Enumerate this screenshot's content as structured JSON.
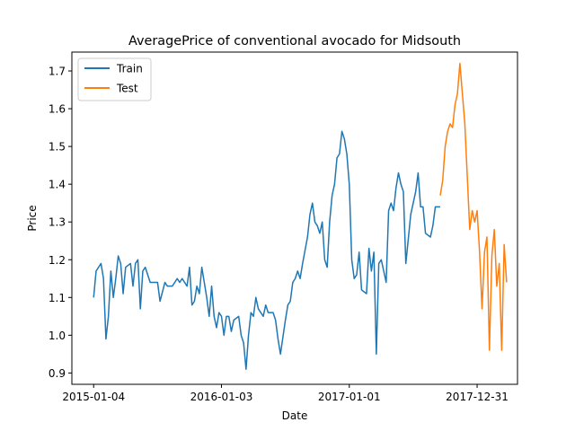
{
  "chart_data": {
    "type": "line",
    "title": "AveragePrice of conventional avocado for Midsouth",
    "xlabel": "Date",
    "ylabel": "Price",
    "x_tick_labels": [
      "2015-01-04",
      "2016-01-03",
      "2017-01-01",
      "2017-12-31"
    ],
    "x_tick_dates": [
      "2015-01-04",
      "2016-01-03",
      "2017-01-01",
      "2017-12-31"
    ],
    "y_ticks": [
      0.9,
      1.0,
      1.1,
      1.2,
      1.3,
      1.4,
      1.5,
      1.6,
      1.7
    ],
    "y_tick_labels": [
      "0.9",
      "1.0",
      "1.1",
      "1.2",
      "1.3",
      "1.4",
      "1.5",
      "1.6",
      "1.7"
    ],
    "xlim": [
      "2014-11-03",
      "2018-04-25"
    ],
    "ylim": [
      0.87,
      1.75
    ],
    "grid": false,
    "legend": {
      "position": "top-left",
      "entries": [
        "Train",
        "Test"
      ]
    },
    "series": [
      {
        "name": "Train",
        "color": "#1f77b4",
        "x": [
          "2015-01-04",
          "2015-01-11",
          "2015-01-25",
          "2015-02-01",
          "2015-02-08",
          "2015-02-15",
          "2015-02-22",
          "2015-03-01",
          "2015-03-08",
          "2015-03-15",
          "2015-03-22",
          "2015-03-29",
          "2015-04-05",
          "2015-04-19",
          "2015-04-26",
          "2015-05-03",
          "2015-05-10",
          "2015-05-17",
          "2015-05-24",
          "2015-05-31",
          "2015-06-14",
          "2015-06-21",
          "2015-07-05",
          "2015-07-12",
          "2015-07-26",
          "2015-08-02",
          "2015-08-16",
          "2015-08-23",
          "2015-08-30",
          "2015-09-06",
          "2015-09-13",
          "2015-09-20",
          "2015-09-27",
          "2015-10-04",
          "2015-10-11",
          "2015-10-18",
          "2015-10-25",
          "2015-11-01",
          "2015-11-08",
          "2015-11-22",
          "2015-11-29",
          "2015-12-06",
          "2015-12-13",
          "2015-12-20",
          "2015-12-27",
          "2016-01-03",
          "2016-01-10",
          "2016-01-17",
          "2016-01-24",
          "2016-01-31",
          "2016-02-07",
          "2016-02-21",
          "2016-02-28",
          "2016-03-06",
          "2016-03-13",
          "2016-03-20",
          "2016-03-27",
          "2016-04-03",
          "2016-04-10",
          "2016-04-17",
          "2016-05-01",
          "2016-05-08",
          "2016-05-15",
          "2016-05-29",
          "2016-06-05",
          "2016-06-12",
          "2016-06-19",
          "2016-07-03",
          "2016-07-10",
          "2016-07-17",
          "2016-07-24",
          "2016-07-31",
          "2016-08-07",
          "2016-08-14",
          "2016-08-21",
          "2016-09-04",
          "2016-09-11",
          "2016-09-18",
          "2016-09-25",
          "2016-10-02",
          "2016-10-09",
          "2016-10-16",
          "2016-10-23",
          "2016-10-30",
          "2016-11-06",
          "2016-11-13",
          "2016-11-20",
          "2016-11-27",
          "2016-12-04",
          "2016-12-11",
          "2016-12-18",
          "2016-12-25",
          "2017-01-01",
          "2017-01-08",
          "2017-01-15",
          "2017-01-22",
          "2017-01-29",
          "2017-02-05",
          "2017-02-19",
          "2017-02-26",
          "2017-03-05",
          "2017-03-12",
          "2017-03-19",
          "2017-03-26",
          "2017-04-02",
          "2017-04-16",
          "2017-04-23",
          "2017-04-30",
          "2017-05-07",
          "2017-05-14",
          "2017-05-21",
          "2017-05-28",
          "2017-06-04",
          "2017-06-11",
          "2017-06-25",
          "2017-07-02",
          "2017-07-09",
          "2017-07-16",
          "2017-07-23",
          "2017-07-30",
          "2017-08-06",
          "2017-08-20",
          "2017-08-27",
          "2017-09-03",
          "2017-09-10",
          "2017-09-17"
        ],
        "y": [
          1.1,
          1.17,
          1.19,
          1.15,
          0.99,
          1.05,
          1.17,
          1.1,
          1.15,
          1.21,
          1.19,
          1.11,
          1.18,
          1.19,
          1.13,
          1.19,
          1.2,
          1.07,
          1.17,
          1.18,
          1.14,
          1.14,
          1.14,
          1.09,
          1.14,
          1.13,
          1.13,
          1.14,
          1.15,
          1.14,
          1.15,
          1.14,
          1.13,
          1.18,
          1.08,
          1.09,
          1.13,
          1.11,
          1.18,
          1.1,
          1.05,
          1.13,
          1.05,
          1.02,
          1.06,
          1.05,
          1.0,
          1.05,
          1.05,
          1.01,
          1.04,
          1.05,
          1.0,
          0.98,
          0.91,
          1.0,
          1.06,
          1.05,
          1.1,
          1.07,
          1.05,
          1.08,
          1.06,
          1.06,
          1.04,
          0.99,
          0.95,
          1.04,
          1.08,
          1.09,
          1.14,
          1.15,
          1.17,
          1.15,
          1.19,
          1.26,
          1.32,
          1.35,
          1.3,
          1.29,
          1.27,
          1.3,
          1.2,
          1.18,
          1.3,
          1.37,
          1.4,
          1.47,
          1.48,
          1.54,
          1.52,
          1.48,
          1.4,
          1.2,
          1.15,
          1.16,
          1.22,
          1.12,
          1.11,
          1.23,
          1.17,
          1.22,
          0.95,
          1.19,
          1.2,
          1.14,
          1.33,
          1.35,
          1.33,
          1.39,
          1.43,
          1.4,
          1.38,
          1.19,
          1.32,
          1.35,
          1.38,
          1.43,
          1.34,
          1.34,
          1.27,
          1.26,
          1.29,
          1.34,
          1.34,
          1.34
        ]
      },
      {
        "name": "Test",
        "color": "#ff7f0e",
        "x": [
          "2017-09-17",
          "2017-09-24",
          "2017-10-01",
          "2017-10-08",
          "2017-10-15",
          "2017-10-22",
          "2017-10-29",
          "2017-11-05",
          "2017-11-12",
          "2017-11-19",
          "2017-11-26",
          "2017-12-03",
          "2017-12-10",
          "2017-12-17",
          "2017-12-24",
          "2017-12-31",
          "2018-01-07",
          "2018-01-14",
          "2018-01-21",
          "2018-01-28",
          "2018-02-04",
          "2018-02-11",
          "2018-02-18",
          "2018-02-25",
          "2018-03-04",
          "2018-03-11",
          "2018-03-18",
          "2018-03-25"
        ],
        "y": [
          1.37,
          1.41,
          1.5,
          1.54,
          1.56,
          1.55,
          1.61,
          1.64,
          1.72,
          1.64,
          1.56,
          1.42,
          1.28,
          1.33,
          1.3,
          1.33,
          1.22,
          1.07,
          1.22,
          1.26,
          0.96,
          1.21,
          1.28,
          1.13,
          1.19,
          0.96,
          1.24,
          1.14
        ]
      }
    ]
  }
}
